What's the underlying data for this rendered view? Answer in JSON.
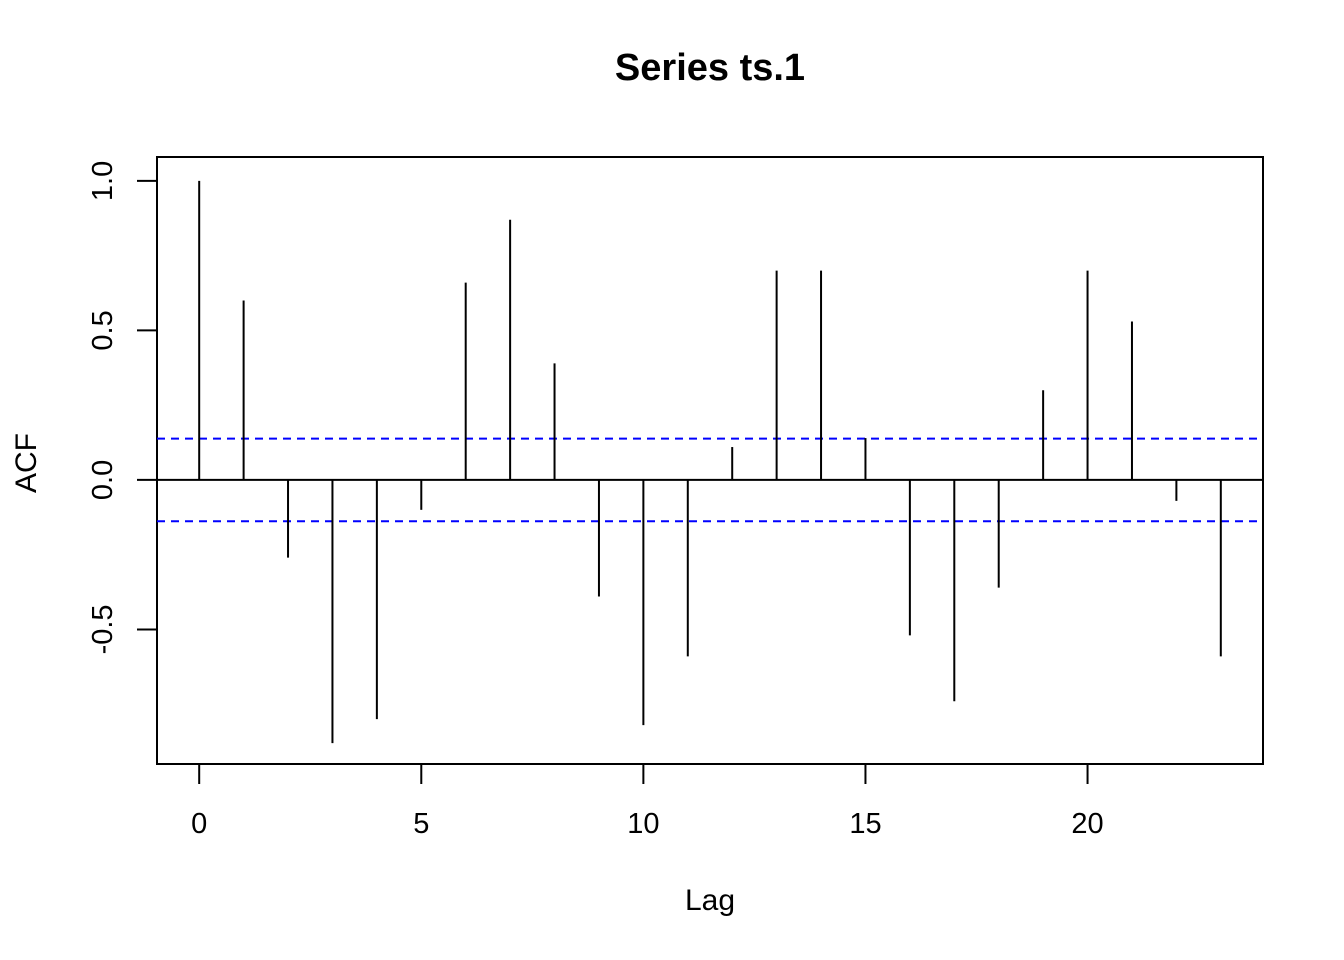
{
  "chart_data": {
    "type": "bar",
    "title": "Series  ts.1",
    "xlabel": "Lag",
    "ylabel": "ACF",
    "xlim": [
      -0.95,
      23.95
    ],
    "ylim": [
      -0.95,
      1.08
    ],
    "x_ticks": [
      0,
      5,
      10,
      15,
      20
    ],
    "x_tick_labels": [
      "0",
      "5",
      "10",
      "15",
      "20"
    ],
    "y_ticks": [
      -0.5,
      0.0,
      0.5,
      1.0
    ],
    "y_tick_labels": [
      "-0.5",
      "0.0",
      "0.5",
      "1.0"
    ],
    "lags": [
      0,
      1,
      2,
      3,
      4,
      5,
      6,
      7,
      8,
      9,
      10,
      11,
      12,
      13,
      14,
      15,
      16,
      17,
      18,
      19,
      20,
      21,
      22,
      23
    ],
    "acf": [
      1.0,
      0.6,
      -0.26,
      -0.88,
      -0.8,
      -0.1,
      0.66,
      0.87,
      0.39,
      -0.39,
      -0.82,
      -0.59,
      0.11,
      0.7,
      0.7,
      0.14,
      -0.52,
      -0.74,
      -0.36,
      0.3,
      0.7,
      0.53,
      -0.07,
      -0.59
    ],
    "confidence_bounds": [
      0.138,
      -0.138
    ],
    "colors": {
      "bars": "#000000",
      "confidence": "#0000ff",
      "zero_line": "#000000"
    },
    "grid": false
  }
}
